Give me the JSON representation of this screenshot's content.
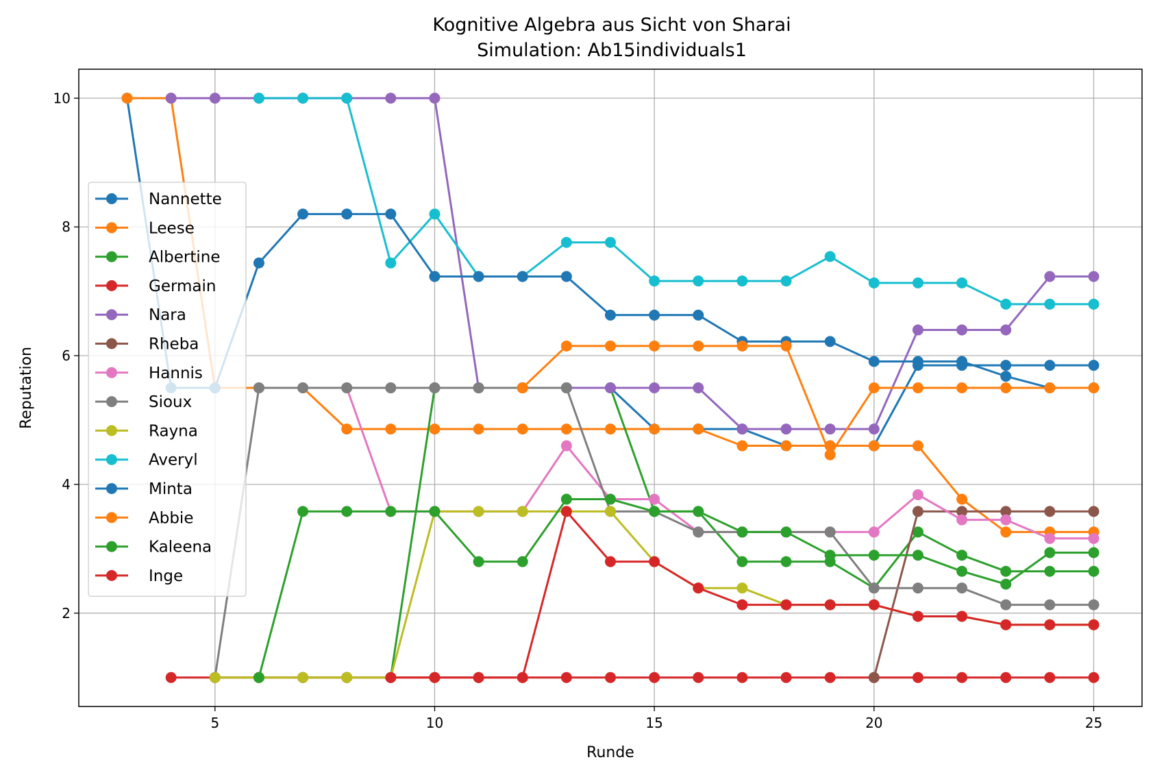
{
  "chart_data": {
    "type": "line",
    "title": "Kognitive Algebra aus Sicht von Sharai",
    "subtitle": "Simulation: Ab15individuals1",
    "xlabel": "Runde",
    "ylabel": "Reputation",
    "xlim": [
      1.9,
      26.1
    ],
    "ylim": [
      0.55,
      10.45
    ],
    "xticks": [
      5,
      10,
      15,
      20,
      25
    ],
    "yticks": [
      2,
      4,
      6,
      8,
      10
    ],
    "grid": true,
    "legend_position": "center-left",
    "series": [
      {
        "name": "Nannette",
        "color": "#1f77b4",
        "x": [
          3,
          4,
          5,
          6,
          7,
          8,
          9,
          10,
          11,
          12,
          13,
          14,
          15,
          16,
          17,
          18,
          19,
          20,
          21,
          22,
          23,
          24,
          25
        ],
        "y": [
          10,
          5.5,
          5.5,
          5.5,
          5.5,
          5.5,
          5.5,
          5.5,
          5.5,
          5.5,
          5.5,
          5.5,
          4.86,
          4.86,
          4.86,
          4.6,
          4.6,
          4.6,
          5.85,
          5.85,
          5.85,
          5.85,
          5.85
        ]
      },
      {
        "name": "Leese",
        "color": "#ff7f0e",
        "x": [
          3,
          4,
          5,
          6,
          7,
          8,
          9,
          10,
          11,
          12,
          13,
          14,
          15,
          16,
          17,
          18,
          19,
          20,
          21,
          22,
          23,
          24,
          25
        ],
        "y": [
          10,
          10,
          5.5,
          5.5,
          5.5,
          4.86,
          4.86,
          4.86,
          4.86,
          4.86,
          4.86,
          4.86,
          4.86,
          4.86,
          4.6,
          4.6,
          4.6,
          4.6,
          4.6,
          3.77,
          3.26,
          3.26,
          3.26
        ]
      },
      {
        "name": "Albertine",
        "color": "#2ca02c",
        "x": [
          5,
          6,
          7,
          8,
          9,
          10,
          11,
          12,
          13,
          14,
          15,
          16,
          17,
          18,
          19,
          20,
          21,
          22,
          23,
          24,
          25
        ],
        "y": [
          1,
          1,
          1,
          1,
          1,
          5.5,
          5.5,
          5.5,
          5.5,
          5.5,
          3.58,
          3.58,
          2.8,
          2.8,
          2.8,
          2.39,
          3.26,
          2.9,
          2.65,
          2.65,
          2.65
        ]
      },
      {
        "name": "Germain",
        "color": "#d62728",
        "x": [
          4,
          5,
          6,
          7,
          8,
          9,
          10,
          11,
          12,
          13,
          14,
          15,
          16,
          17,
          18,
          19,
          20,
          21,
          22,
          23,
          24,
          25
        ],
        "y": [
          1,
          1,
          1,
          1,
          1,
          1,
          1,
          1,
          1,
          1,
          1,
          1,
          1,
          1,
          1,
          1,
          1,
          1,
          1,
          1,
          1,
          1
        ]
      },
      {
        "name": "Nara",
        "color": "#9467bd",
        "x": [
          4,
          5,
          6,
          7,
          8,
          9,
          10,
          11,
          12,
          13,
          14,
          15,
          16,
          17,
          18,
          19,
          20,
          21,
          22,
          23,
          24,
          25
        ],
        "y": [
          10,
          10,
          10,
          10,
          10,
          10,
          10,
          5.5,
          5.5,
          5.5,
          5.5,
          5.5,
          5.5,
          4.86,
          4.86,
          4.86,
          4.86,
          6.4,
          6.4,
          6.4,
          7.23,
          7.23
        ]
      },
      {
        "name": "Rheba",
        "color": "#8c564b",
        "x": [
          20,
          21,
          22,
          23,
          24,
          25
        ],
        "y": [
          1,
          3.58,
          3.58,
          3.58,
          3.58,
          3.58
        ]
      },
      {
        "name": "Hannis",
        "color": "#e377c2",
        "x": [
          8,
          9,
          10,
          11,
          12,
          13,
          14,
          15,
          16,
          17,
          18,
          19,
          20,
          21,
          22,
          23,
          24,
          25
        ],
        "y": [
          5.5,
          3.58,
          3.58,
          3.58,
          3.58,
          4.6,
          3.77,
          3.77,
          3.26,
          3.26,
          3.26,
          3.26,
          3.26,
          3.84,
          3.45,
          3.45,
          3.16,
          3.16
        ]
      },
      {
        "name": "Sioux",
        "color": "#7f7f7f",
        "x": [
          5,
          6,
          7,
          8,
          9,
          10,
          11,
          12,
          13,
          14,
          15,
          16,
          17,
          18,
          19,
          20,
          21,
          22,
          23,
          24,
          25
        ],
        "y": [
          1,
          5.5,
          5.5,
          5.5,
          5.5,
          5.5,
          5.5,
          5.5,
          5.5,
          3.58,
          3.58,
          3.26,
          3.26,
          3.26,
          3.26,
          2.39,
          2.39,
          2.39,
          2.13,
          2.13,
          2.13
        ]
      },
      {
        "name": "Rayna",
        "color": "#bcbd22",
        "x": [
          5,
          6,
          7,
          8,
          9,
          10,
          11,
          12,
          13,
          14,
          15,
          16,
          17,
          18,
          19,
          20,
          21,
          22,
          23,
          24,
          25
        ],
        "y": [
          1,
          1,
          1,
          1,
          1,
          3.58,
          3.58,
          3.58,
          3.58,
          3.58,
          2.8,
          2.39,
          2.39,
          2.13,
          2.13,
          2.13,
          1.95,
          1.95,
          1.82,
          1.82,
          1.82
        ]
      },
      {
        "name": "Averyl",
        "color": "#17becf",
        "x": [
          6,
          7,
          8,
          9,
          10,
          11,
          12,
          13,
          14,
          15,
          16,
          17,
          18,
          19,
          20,
          21,
          22,
          23,
          24,
          25
        ],
        "y": [
          10,
          10,
          10,
          7.44,
          8.2,
          7.23,
          7.23,
          7.76,
          7.76,
          7.16,
          7.16,
          7.16,
          7.16,
          7.54,
          7.13,
          7.13,
          7.13,
          6.8,
          6.8,
          6.8
        ]
      },
      {
        "name": "Minta",
        "color": "#1f77b4",
        "x": [
          5,
          6,
          7,
          8,
          9,
          10,
          11,
          12,
          13,
          14,
          15,
          16,
          17,
          18,
          19,
          20,
          21,
          22,
          23,
          24,
          25
        ],
        "y": [
          5.5,
          7.44,
          8.2,
          8.2,
          8.2,
          7.23,
          7.23,
          7.23,
          7.23,
          6.63,
          6.63,
          6.63,
          6.22,
          6.22,
          6.22,
          5.91,
          5.91,
          5.91,
          5.68,
          5.5,
          5.5
        ]
      },
      {
        "name": "Abbie",
        "color": "#ff7f0e",
        "x": [
          12,
          13,
          14,
          15,
          16,
          17,
          18,
          19,
          20,
          21,
          22,
          23,
          24,
          25
        ],
        "y": [
          5.5,
          6.15,
          6.15,
          6.15,
          6.15,
          6.15,
          6.15,
          4.46,
          5.5,
          5.5,
          5.5,
          5.5,
          5.5,
          5.5
        ]
      },
      {
        "name": "Kaleena",
        "color": "#2ca02c",
        "x": [
          6,
          7,
          8,
          9,
          10,
          11,
          12,
          13,
          14,
          15,
          16,
          17,
          18,
          19,
          20,
          21,
          22,
          23,
          24,
          25
        ],
        "y": [
          1,
          3.58,
          3.58,
          3.58,
          3.58,
          2.8,
          2.8,
          3.77,
          3.77,
          3.58,
          3.58,
          3.26,
          3.26,
          2.9,
          2.9,
          2.9,
          2.65,
          2.45,
          2.94,
          2.94
        ]
      },
      {
        "name": "Inge",
        "color": "#d62728",
        "x": [
          9,
          10,
          11,
          12,
          13,
          14,
          15,
          16,
          17,
          18,
          19,
          20,
          21,
          22,
          23,
          24,
          25
        ],
        "y": [
          1,
          1,
          1,
          1,
          3.58,
          2.8,
          2.8,
          2.39,
          2.13,
          2.13,
          2.13,
          2.13,
          1.95,
          1.95,
          1.82,
          1.82,
          1.82
        ]
      }
    ]
  }
}
